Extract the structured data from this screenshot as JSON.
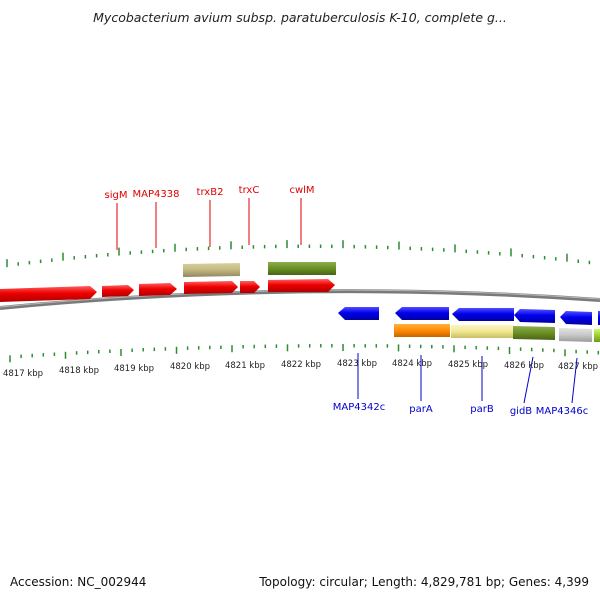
{
  "title": "Mycobacterium avium subsp. paratuberculosis K-10, complete g...",
  "footer": {
    "accession": "Accession: NC_002944",
    "summary": "Topology: circular; Length: 4,829,781 bp; Genes: 4,399"
  },
  "colors": {
    "top_labels": "#e00000",
    "bottom_labels": "#0000cc",
    "ticks": "#2e8b2e",
    "backbone": "#8a8a8a"
  },
  "axis_labels": [
    "4817 kbp",
    "4818 kbp",
    "4819 kbp",
    "4820 kbp",
    "4821 kbp",
    "4822 kbp",
    "4823 kbp",
    "4824 kbp",
    "4825 kbp",
    "4826 kbp",
    "4827 kbp"
  ],
  "top_gene_labels": [
    "sigM",
    "MAP4338",
    "trxB2",
    "trxC",
    "cwlM"
  ],
  "bottom_gene_labels": [
    "MAP4342c",
    "parA",
    "parB",
    "gidB",
    "MAP4346c"
  ],
  "features": {
    "forward_red": 6,
    "forward_other": [
      "khaki",
      "olive-green"
    ],
    "reverse_blue": 6,
    "reverse_other": [
      "orange",
      "pale-yellow",
      "olive-green",
      "light-gray",
      "yellow-green"
    ]
  }
}
